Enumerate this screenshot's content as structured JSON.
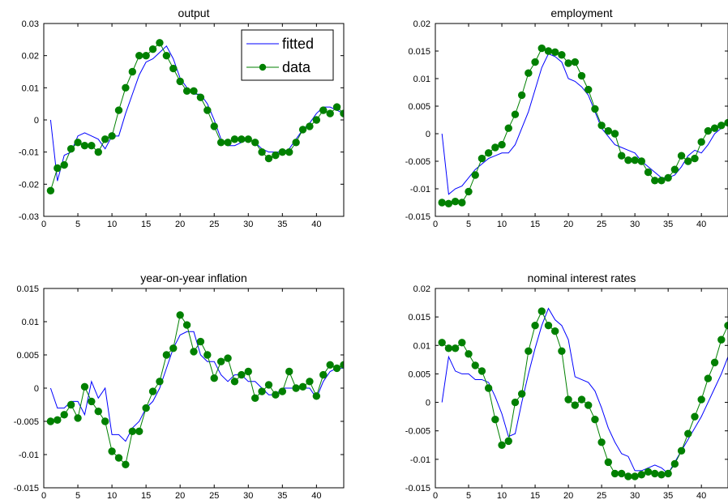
{
  "chart_data": [
    {
      "type": "line",
      "title": "output",
      "xlim": [
        0,
        44
      ],
      "ylim": [
        -0.03,
        0.03
      ],
      "xticks": [
        0,
        5,
        10,
        15,
        20,
        25,
        30,
        35,
        40
      ],
      "yticks": [
        -0.03,
        -0.02,
        -0.01,
        0,
        0.01,
        0.02,
        0.03
      ],
      "xtick_labels": [
        "0",
        "5",
        "10",
        "15",
        "20",
        "25",
        "30",
        "35",
        "40"
      ],
      "ytick_labels": [
        "-0.03",
        "-0.02",
        "-0.01",
        "0",
        "0.01",
        "0.02",
        "0.03"
      ],
      "legend": {
        "position": "top-right",
        "entries": [
          "fitted",
          "data"
        ]
      },
      "series": [
        {
          "name": "fitted",
          "color": "#0000ff",
          "marker": "none",
          "x": [
            1,
            2,
            3,
            4,
            5,
            6,
            7,
            8,
            9,
            10,
            11,
            12,
            13,
            14,
            15,
            16,
            17,
            18,
            19,
            20,
            21,
            22,
            23,
            24,
            25,
            26,
            27,
            28,
            29,
            30,
            31,
            32,
            33,
            34,
            35,
            36,
            37,
            38,
            39,
            40,
            41,
            42,
            43,
            44
          ],
          "y": [
            0.0,
            -0.019,
            -0.011,
            -0.01,
            -0.005,
            -0.004,
            -0.005,
            -0.006,
            -0.009,
            -0.005,
            -0.005,
            0.002,
            0.008,
            0.014,
            0.018,
            0.019,
            0.021,
            0.023,
            0.019,
            0.013,
            0.01,
            0.008,
            0.008,
            0.005,
            0.0,
            -0.006,
            -0.008,
            -0.008,
            -0.007,
            -0.006,
            -0.007,
            -0.009,
            -0.01,
            -0.01,
            -0.01,
            -0.009,
            -0.006,
            -0.003,
            -0.001,
            0.002,
            0.004,
            0.004,
            0.003,
            0.002
          ]
        },
        {
          "name": "data",
          "color": "#008000",
          "marker": "circle",
          "x": [
            1,
            2,
            3,
            4,
            5,
            6,
            7,
            8,
            9,
            10,
            11,
            12,
            13,
            14,
            15,
            16,
            17,
            18,
            19,
            20,
            21,
            22,
            23,
            24,
            25,
            26,
            27,
            28,
            29,
            30,
            31,
            32,
            33,
            34,
            35,
            36,
            37,
            38,
            39,
            40,
            41,
            42,
            43,
            44
          ],
          "y": [
            -0.022,
            -0.015,
            -0.014,
            -0.009,
            -0.007,
            -0.008,
            -0.008,
            -0.01,
            -0.006,
            -0.005,
            0.003,
            0.01,
            0.015,
            0.02,
            0.02,
            0.022,
            0.024,
            0.02,
            0.016,
            0.012,
            0.009,
            0.009,
            0.007,
            0.003,
            -0.002,
            -0.007,
            -0.007,
            -0.006,
            -0.006,
            -0.006,
            -0.007,
            -0.01,
            -0.012,
            -0.011,
            -0.01,
            -0.01,
            -0.007,
            -0.003,
            -0.002,
            0.0,
            0.003,
            0.002,
            0.004,
            0.002
          ]
        }
      ]
    },
    {
      "type": "line",
      "title": "employment",
      "xlim": [
        0,
        44
      ],
      "ylim": [
        -0.015,
        0.02
      ],
      "xticks": [
        0,
        5,
        10,
        15,
        20,
        25,
        30,
        35,
        40
      ],
      "yticks": [
        -0.015,
        -0.01,
        -0.005,
        0,
        0.005,
        0.01,
        0.015,
        0.02
      ],
      "xtick_labels": [
        "0",
        "5",
        "10",
        "15",
        "20",
        "25",
        "30",
        "35",
        "40"
      ],
      "ytick_labels": [
        "-0.015",
        "-0.01",
        "-0.005",
        "0",
        "0.005",
        "0.01",
        "0.015",
        "0.02"
      ],
      "series": [
        {
          "name": "fitted",
          "color": "#0000ff",
          "marker": "none",
          "x": [
            1,
            2,
            3,
            4,
            5,
            6,
            7,
            8,
            9,
            10,
            11,
            12,
            13,
            14,
            15,
            16,
            17,
            18,
            19,
            20,
            21,
            22,
            23,
            24,
            25,
            26,
            27,
            28,
            29,
            30,
            31,
            32,
            33,
            34,
            35,
            36,
            37,
            38,
            39,
            40,
            41,
            42,
            43,
            44
          ],
          "y": [
            0.0,
            -0.011,
            -0.01,
            -0.0095,
            -0.008,
            -0.0065,
            -0.0055,
            -0.0045,
            -0.004,
            -0.0035,
            -0.0035,
            -0.002,
            0.001,
            0.004,
            0.008,
            0.012,
            0.0145,
            0.014,
            0.013,
            0.01,
            0.0095,
            0.0085,
            0.007,
            0.004,
            0.001,
            -0.0005,
            -0.002,
            -0.0025,
            -0.003,
            -0.0035,
            -0.005,
            -0.006,
            -0.007,
            -0.008,
            -0.008,
            -0.0075,
            -0.006,
            -0.004,
            -0.003,
            -0.0035,
            -0.002,
            0.0,
            0.001,
            0.002
          ]
        },
        {
          "name": "data",
          "color": "#008000",
          "marker": "circle",
          "x": [
            1,
            2,
            3,
            4,
            5,
            6,
            7,
            8,
            9,
            10,
            11,
            12,
            13,
            14,
            15,
            16,
            17,
            18,
            19,
            20,
            21,
            22,
            23,
            24,
            25,
            26,
            27,
            28,
            29,
            30,
            31,
            32,
            33,
            34,
            35,
            36,
            37,
            38,
            39,
            40,
            41,
            42,
            43,
            44
          ],
          "y": [
            -0.0125,
            -0.0127,
            -0.0123,
            -0.0125,
            -0.0105,
            -0.0075,
            -0.0045,
            -0.0035,
            -0.0025,
            -0.002,
            0.001,
            0.0035,
            0.007,
            0.011,
            0.013,
            0.0155,
            0.015,
            0.0148,
            0.0143,
            0.0128,
            0.013,
            0.0105,
            0.008,
            0.0045,
            0.0015,
            0.0005,
            0.0,
            -0.004,
            -0.0048,
            -0.0048,
            -0.005,
            -0.007,
            -0.0085,
            -0.0085,
            -0.008,
            -0.0065,
            -0.004,
            -0.005,
            -0.0045,
            -0.0015,
            0.0005,
            0.001,
            0.0015,
            0.002
          ]
        }
      ]
    },
    {
      "type": "line",
      "title": "year-on-year inflation",
      "xlim": [
        0,
        44
      ],
      "ylim": [
        -0.015,
        0.015
      ],
      "xticks": [
        0,
        5,
        10,
        15,
        20,
        25,
        30,
        35,
        40
      ],
      "yticks": [
        -0.015,
        -0.01,
        -0.005,
        0,
        0.005,
        0.01,
        0.015
      ],
      "xtick_labels": [
        "0",
        "5",
        "10",
        "15",
        "20",
        "25",
        "30",
        "35",
        "40"
      ],
      "ytick_labels": [
        "-0.015",
        "-0.01",
        "-0.005",
        "0",
        "0.005",
        "0.01",
        "0.015"
      ],
      "series": [
        {
          "name": "fitted",
          "color": "#0000ff",
          "marker": "none",
          "x": [
            1,
            2,
            3,
            4,
            5,
            6,
            7,
            8,
            9,
            10,
            11,
            12,
            13,
            14,
            15,
            16,
            17,
            18,
            19,
            20,
            21,
            22,
            23,
            24,
            25,
            26,
            27,
            28,
            29,
            30,
            31,
            32,
            33,
            34,
            35,
            36,
            37,
            38,
            39,
            40,
            41,
            42,
            43,
            44
          ],
          "y": [
            0.0,
            -0.003,
            -0.003,
            -0.002,
            -0.002,
            -0.004,
            0.001,
            -0.0015,
            0.0,
            -0.007,
            -0.007,
            -0.008,
            -0.006,
            -0.005,
            -0.003,
            -0.002,
            0.0,
            0.003,
            0.006,
            0.008,
            0.0085,
            0.0085,
            0.005,
            0.004,
            0.004,
            0.002,
            0.001,
            0.002,
            0.002,
            0.001,
            0.001,
            0.0,
            -0.001,
            -0.001,
            0.0,
            0.0,
            0.0,
            0.0,
            0.0,
            -0.0015,
            0.001,
            0.0025,
            0.003,
            0.003
          ]
        },
        {
          "name": "data",
          "color": "#008000",
          "marker": "circle",
          "x": [
            1,
            2,
            3,
            4,
            5,
            6,
            7,
            8,
            9,
            10,
            11,
            12,
            13,
            14,
            15,
            16,
            17,
            18,
            19,
            20,
            21,
            22,
            23,
            24,
            25,
            26,
            27,
            28,
            29,
            30,
            31,
            32,
            33,
            34,
            35,
            36,
            37,
            38,
            39,
            40,
            41,
            42,
            43,
            44
          ],
          "y": [
            -0.005,
            -0.0048,
            -0.004,
            -0.0025,
            -0.0045,
            0.0002,
            -0.002,
            -0.0035,
            -0.005,
            -0.0095,
            -0.0105,
            -0.0115,
            -0.0065,
            -0.0065,
            -0.003,
            -0.0005,
            0.001,
            0.005,
            0.006,
            0.011,
            0.0095,
            0.0055,
            0.007,
            0.005,
            0.0015,
            0.004,
            0.0045,
            0.001,
            0.002,
            0.0025,
            -0.0015,
            -0.0005,
            0.0005,
            -0.001,
            -0.0005,
            0.0025,
            0.0,
            0.0002,
            0.001,
            -0.0012,
            0.002,
            0.0035,
            0.003,
            0.0035
          ]
        }
      ]
    },
    {
      "type": "line",
      "title": "nominal interest rates",
      "xlim": [
        0,
        44
      ],
      "ylim": [
        -0.015,
        0.02
      ],
      "xticks": [
        0,
        5,
        10,
        15,
        20,
        25,
        30,
        35,
        40
      ],
      "yticks": [
        -0.015,
        -0.01,
        -0.005,
        0,
        0.005,
        0.01,
        0.015,
        0.02
      ],
      "xtick_labels": [
        "0",
        "5",
        "10",
        "15",
        "20",
        "25",
        "30",
        "35",
        "40"
      ],
      "ytick_labels": [
        "-0.015",
        "-0.01",
        "-0.005",
        "0",
        "0.005",
        "0.01",
        "0.015",
        "0.02"
      ],
      "series": [
        {
          "name": "fitted",
          "color": "#0000ff",
          "marker": "none",
          "x": [
            1,
            2,
            3,
            4,
            5,
            6,
            7,
            8,
            9,
            10,
            11,
            12,
            13,
            14,
            15,
            16,
            17,
            18,
            19,
            20,
            21,
            22,
            23,
            24,
            25,
            26,
            27,
            28,
            29,
            30,
            31,
            32,
            33,
            34,
            35,
            36,
            37,
            38,
            39,
            40,
            41,
            42,
            43,
            44
          ],
          "y": [
            0.0,
            0.008,
            0.0055,
            0.005,
            0.005,
            0.004,
            0.004,
            0.0035,
            0.001,
            -0.002,
            -0.006,
            -0.0055,
            0.0,
            0.005,
            0.0095,
            0.0135,
            0.0165,
            0.0145,
            0.0135,
            0.011,
            0.0045,
            0.004,
            0.0035,
            0.002,
            -0.001,
            -0.0045,
            -0.007,
            -0.009,
            -0.0095,
            -0.012,
            -0.012,
            -0.0115,
            -0.011,
            -0.0115,
            -0.0125,
            -0.0105,
            -0.0085,
            -0.0065,
            -0.0045,
            -0.0025,
            0.0,
            0.0025,
            0.005,
            0.008
          ]
        },
        {
          "name": "data",
          "color": "#008000",
          "marker": "circle",
          "x": [
            1,
            2,
            3,
            4,
            5,
            6,
            7,
            8,
            9,
            10,
            11,
            12,
            13,
            14,
            15,
            16,
            17,
            18,
            19,
            20,
            21,
            22,
            23,
            24,
            25,
            26,
            27,
            28,
            29,
            30,
            31,
            32,
            33,
            34,
            35,
            36,
            37,
            38,
            39,
            40,
            41,
            42,
            43,
            44
          ],
          "y": [
            0.0105,
            0.0095,
            0.0095,
            0.0105,
            0.0085,
            0.0065,
            0.0055,
            0.0025,
            -0.003,
            -0.0075,
            -0.0068,
            0.0,
            0.0015,
            0.009,
            0.0135,
            0.016,
            0.0135,
            0.0125,
            0.009,
            0.0005,
            -0.0005,
            0.0005,
            -0.0005,
            -0.003,
            -0.007,
            -0.0105,
            -0.0125,
            -0.0125,
            -0.013,
            -0.013,
            -0.0127,
            -0.0122,
            -0.0125,
            -0.0127,
            -0.0125,
            -0.0108,
            -0.0085,
            -0.0055,
            -0.0025,
            0.0005,
            0.0042,
            0.007,
            0.011,
            0.0135
          ]
        }
      ]
    }
  ]
}
